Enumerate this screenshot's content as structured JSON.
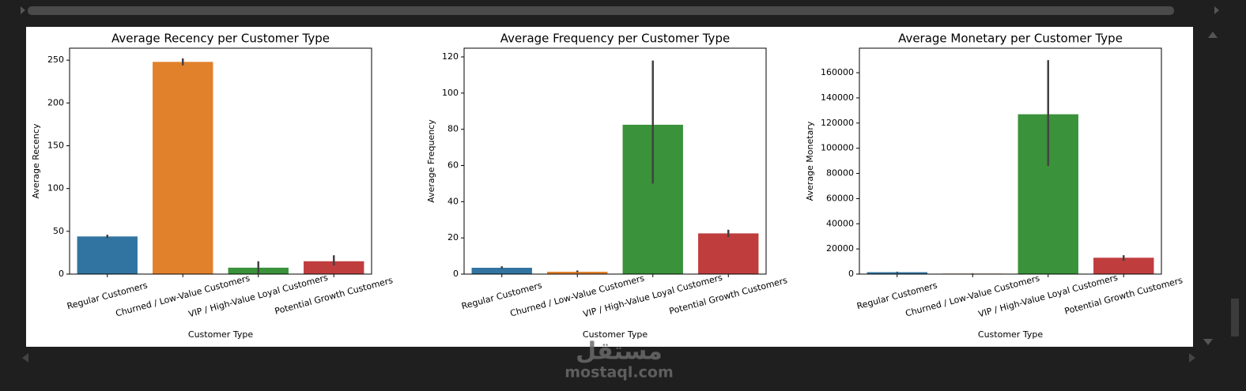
{
  "chart_data": [
    {
      "type": "bar",
      "title": "Average Recency per Customer Type",
      "xlabel": "Customer Type",
      "ylabel": "Average Recency",
      "categories": [
        "Regular Customers",
        "Churned / Low-Value Customers",
        "VIP / High-Value Loyal Customers",
        "Potential Growth Customers"
      ],
      "values": [
        44,
        248,
        7.5,
        15
      ],
      "ci_low": [
        42,
        244,
        1,
        10
      ],
      "ci_high": [
        46,
        252,
        15,
        22
      ],
      "colors": [
        "#3274a1",
        "#e1812c",
        "#3a923a",
        "#c03d3e"
      ],
      "ylim": [
        0,
        264
      ],
      "yticks": [
        0,
        50,
        100,
        150,
        200,
        250
      ]
    },
    {
      "type": "bar",
      "title": "Average Frequency per Customer Type",
      "xlabel": "Customer Type",
      "ylabel": "Average Frequency",
      "categories": [
        "Regular Customers",
        "Churned / Low-Value Customers",
        "VIP / High-Value Loyal Customers",
        "Potential Growth Customers"
      ],
      "values": [
        3.5,
        1.3,
        82.5,
        22.5
      ],
      "ci_low": [
        3,
        1,
        50,
        20.5
      ],
      "ci_high": [
        4.3,
        2,
        118,
        24.5
      ],
      "colors": [
        "#3274a1",
        "#e1812c",
        "#3a923a",
        "#c03d3e"
      ],
      "ylim": [
        0,
        124.8
      ],
      "yticks": [
        0,
        20,
        40,
        60,
        80,
        100,
        120
      ]
    },
    {
      "type": "bar",
      "title": "Average Monetary per Customer Type",
      "xlabel": "Customer Type",
      "ylabel": "Average Monetary",
      "categories": [
        "Regular Customers",
        "Churned / Low-Value Customers",
        "VIP / High-Value Loyal Customers",
        "Potential Growth Customers"
      ],
      "values": [
        1500,
        400,
        127000,
        13000
      ],
      "ci_low": [
        1200,
        300,
        86000,
        10500
      ],
      "ci_high": [
        1900,
        500,
        170000,
        15000
      ],
      "colors": [
        "#3274a1",
        "#e1812c",
        "#3a923a",
        "#c03d3e"
      ],
      "ylim": [
        0,
        179500
      ],
      "yticks": [
        0,
        20000,
        40000,
        60000,
        80000,
        100000,
        120000,
        140000,
        160000
      ]
    }
  ],
  "watermark_logo": "مستقل",
  "watermark": "mostaql.com"
}
